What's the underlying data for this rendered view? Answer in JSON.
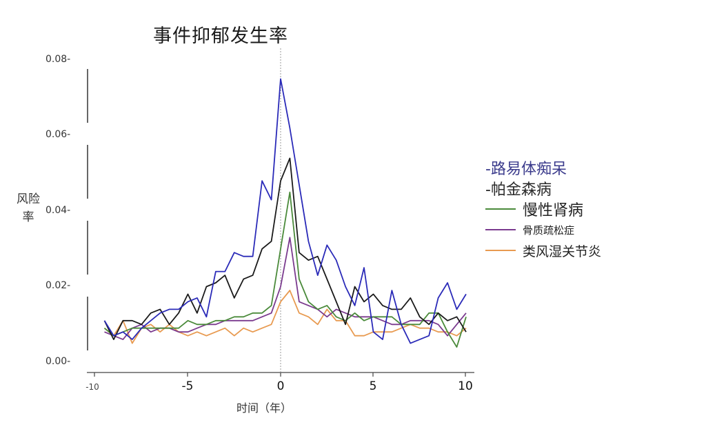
{
  "chart_data": {
    "type": "line",
    "title": "事件抑郁发生率",
    "xlabel": "时间（年）",
    "ylabel": "风险率",
    "xlim": [
      -10,
      10
    ],
    "ylim": [
      0.0,
      0.08
    ],
    "xticks": [
      "-10",
      "-5",
      "0",
      "5",
      "10"
    ],
    "yticks": [
      "0.00-",
      "0.02-",
      "0.04-",
      "0.06-",
      "0.08-"
    ],
    "grid": false,
    "vertical_reference_line_x": 0,
    "legend_position": "right",
    "x": [
      -9.5,
      -9,
      -8.5,
      -8,
      -7.5,
      -7,
      -6.5,
      -6,
      -5.5,
      -5,
      -4.5,
      -4,
      -3.5,
      -3,
      -2.5,
      -2,
      -1.5,
      -1,
      -0.5,
      0,
      0.5,
      1,
      1.5,
      2,
      2.5,
      3,
      3.5,
      4,
      4.5,
      5,
      5.5,
      6,
      6.5,
      7,
      7.5,
      8,
      8.5,
      9,
      9.5,
      10
    ],
    "series": [
      {
        "name": "路易体痴呆",
        "color": "#2a2ab8",
        "values": [
          0.011,
          0.007,
          0.008,
          0.006,
          0.009,
          0.011,
          0.013,
          0.014,
          0.014,
          0.016,
          0.017,
          0.012,
          0.024,
          0.024,
          0.029,
          0.028,
          0.028,
          0.048,
          0.043,
          0.075,
          0.062,
          0.047,
          0.032,
          0.023,
          0.031,
          0.027,
          0.02,
          0.015,
          0.025,
          0.008,
          0.006,
          0.019,
          0.01,
          0.005,
          0.006,
          0.007,
          0.017,
          0.021,
          0.014,
          0.018
        ]
      },
      {
        "name": "帕金森病",
        "color": "#1a1a1a",
        "values": [
          0.011,
          0.006,
          0.011,
          0.011,
          0.01,
          0.013,
          0.014,
          0.01,
          0.013,
          0.018,
          0.013,
          0.02,
          0.021,
          0.023,
          0.017,
          0.022,
          0.023,
          0.03,
          0.032,
          0.048,
          0.054,
          0.029,
          0.027,
          0.028,
          0.022,
          0.016,
          0.01,
          0.02,
          0.016,
          0.018,
          0.015,
          0.014,
          0.014,
          0.017,
          0.012,
          0.01,
          0.013,
          0.011,
          0.012,
          0.008
        ]
      },
      {
        "name": "慢性肾病",
        "color": "#4a8a3a",
        "values": [
          0.009,
          0.007,
          0.008,
          0.009,
          0.009,
          0.009,
          0.009,
          0.009,
          0.009,
          0.011,
          0.01,
          0.01,
          0.011,
          0.011,
          0.012,
          0.012,
          0.013,
          0.013,
          0.015,
          0.03,
          0.045,
          0.022,
          0.016,
          0.014,
          0.015,
          0.012,
          0.011,
          0.013,
          0.011,
          0.012,
          0.012,
          0.012,
          0.01,
          0.01,
          0.01,
          0.013,
          0.013,
          0.008,
          0.004,
          0.012
        ]
      },
      {
        "name": "骨质疏松症",
        "color": "#7a3a8e",
        "values": [
          0.008,
          0.007,
          0.006,
          0.009,
          0.01,
          0.008,
          0.009,
          0.009,
          0.008,
          0.008,
          0.009,
          0.01,
          0.01,
          0.011,
          0.011,
          0.011,
          0.011,
          0.012,
          0.013,
          0.02,
          0.033,
          0.016,
          0.015,
          0.014,
          0.012,
          0.014,
          0.013,
          0.012,
          0.012,
          0.012,
          0.011,
          0.01,
          0.01,
          0.011,
          0.011,
          0.011,
          0.01,
          0.007,
          0.01,
          0.013
        ]
      },
      {
        "name": "类风湿关节炎",
        "color": "#e89a50",
        "values": [
          0.009,
          0.007,
          0.011,
          0.005,
          0.009,
          0.01,
          0.008,
          0.01,
          0.008,
          0.007,
          0.008,
          0.007,
          0.008,
          0.009,
          0.007,
          0.009,
          0.008,
          0.009,
          0.01,
          0.016,
          0.019,
          0.013,
          0.012,
          0.01,
          0.014,
          0.011,
          0.011,
          0.007,
          0.007,
          0.008,
          0.008,
          0.008,
          0.009,
          0.01,
          0.009,
          0.009,
          0.008,
          0.008,
          0.007,
          0.009
        ]
      }
    ]
  },
  "legend": {
    "items": [
      {
        "label": "-路易体痴呆",
        "color": "#3b3b8c",
        "style": "dash-text"
      },
      {
        "label": "-帕金森病",
        "color": "#2a2a2a",
        "style": "dash-text"
      },
      {
        "label": "慢性肾病",
        "color": "#4a8a3a",
        "style": "line"
      },
      {
        "label": "骨质疏松症",
        "color": "#7a3a8e",
        "style": "line"
      },
      {
        "label": "类风湿关节炎",
        "color": "#e89a50",
        "style": "line"
      }
    ]
  }
}
